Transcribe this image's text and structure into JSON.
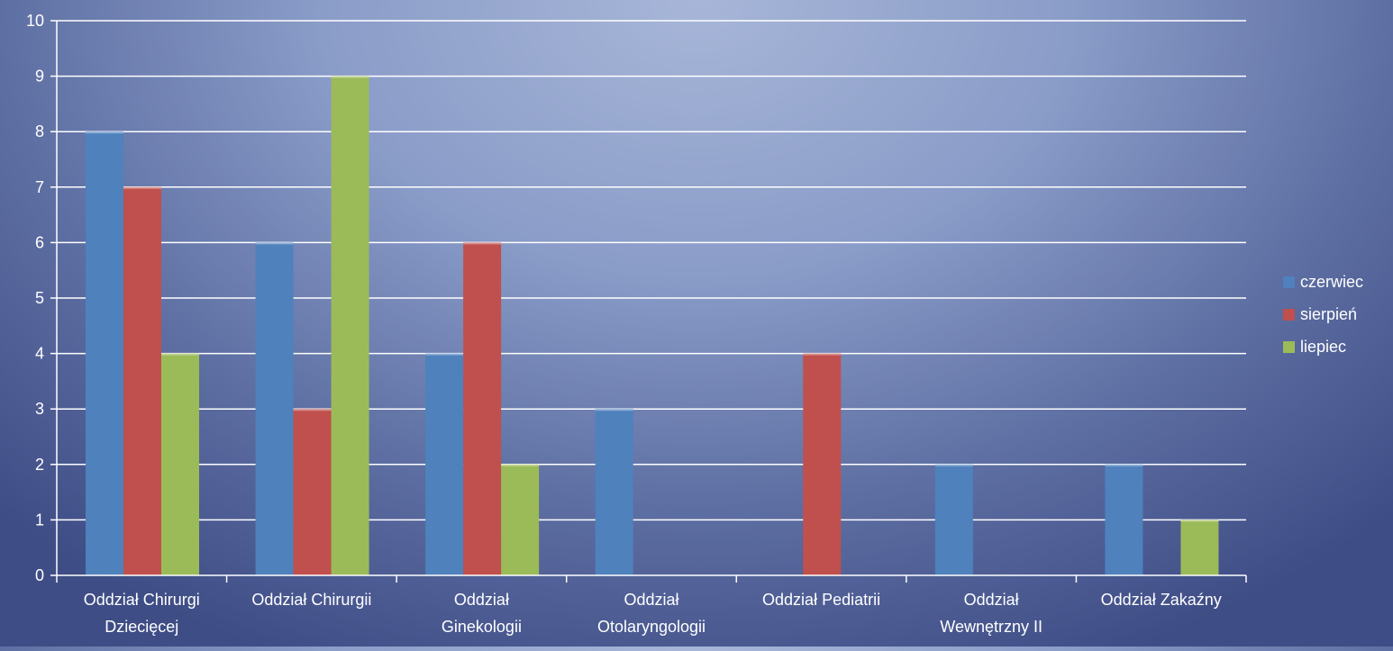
{
  "chart_data": {
    "type": "bar",
    "categories": [
      [
        "Oddział Chirurgi",
        "Dziecięcej"
      ],
      [
        "Oddział Chirurgii"
      ],
      [
        "Oddział",
        "Ginekologii"
      ],
      [
        "Oddział",
        "Otolaryngologii"
      ],
      [
        "Oddział Pediatrii"
      ],
      [
        "Oddział",
        "Wewnętrzny II"
      ],
      [
        "Oddział Zakaźny"
      ]
    ],
    "series": [
      {
        "name": "czerwiec",
        "color": "#4f81bd",
        "values": [
          8,
          6,
          4,
          3,
          0,
          2,
          2
        ]
      },
      {
        "name": "sierpień",
        "color": "#c0504d",
        "values": [
          7,
          3,
          6,
          0,
          4,
          0,
          0
        ]
      },
      {
        "name": "liepiec",
        "color": "#9bbb59",
        "values": [
          4,
          9,
          2,
          0,
          0,
          0,
          1
        ]
      }
    ],
    "title": "",
    "xlabel": "",
    "ylabel": "",
    "ylim": [
      0,
      10
    ],
    "yticks": [
      0,
      1,
      2,
      3,
      4,
      5,
      6,
      7,
      8,
      9,
      10
    ],
    "grid": true,
    "legend_position": "right",
    "colors": {
      "axis": "#ffffff",
      "grid": "#ffffff"
    }
  }
}
